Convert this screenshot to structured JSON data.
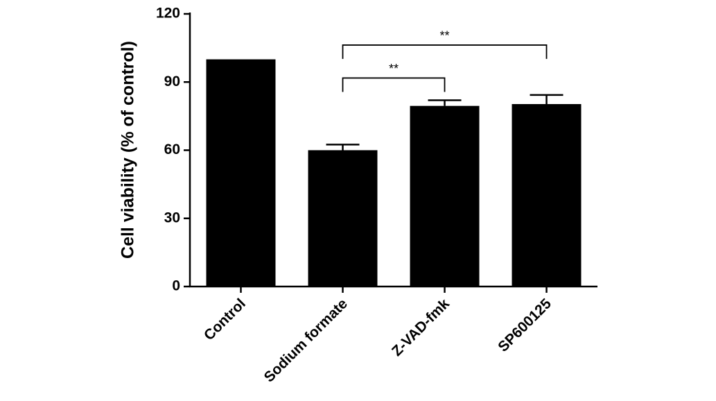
{
  "chart_data": {
    "type": "bar",
    "ylabel": "Cell viability (% of control)",
    "categories": [
      "Control",
      "Sodium formate",
      "Z-VAD-fmk",
      "SP600125"
    ],
    "values": [
      100,
      60,
      79.5,
      80.3
    ],
    "errors": [
      null,
      2.5,
      2.5,
      4
    ],
    "color": "#000000",
    "ylim": [
      0,
      120
    ],
    "yticks": [
      0,
      30,
      60,
      90,
      120
    ],
    "grid": false,
    "annotations": [
      {
        "text": "**",
        "between": [
          "Sodium formate",
          "Z-VAD-fmk"
        ]
      },
      {
        "text": "**",
        "between": [
          "Sodium formate",
          "SP600125"
        ]
      }
    ]
  }
}
